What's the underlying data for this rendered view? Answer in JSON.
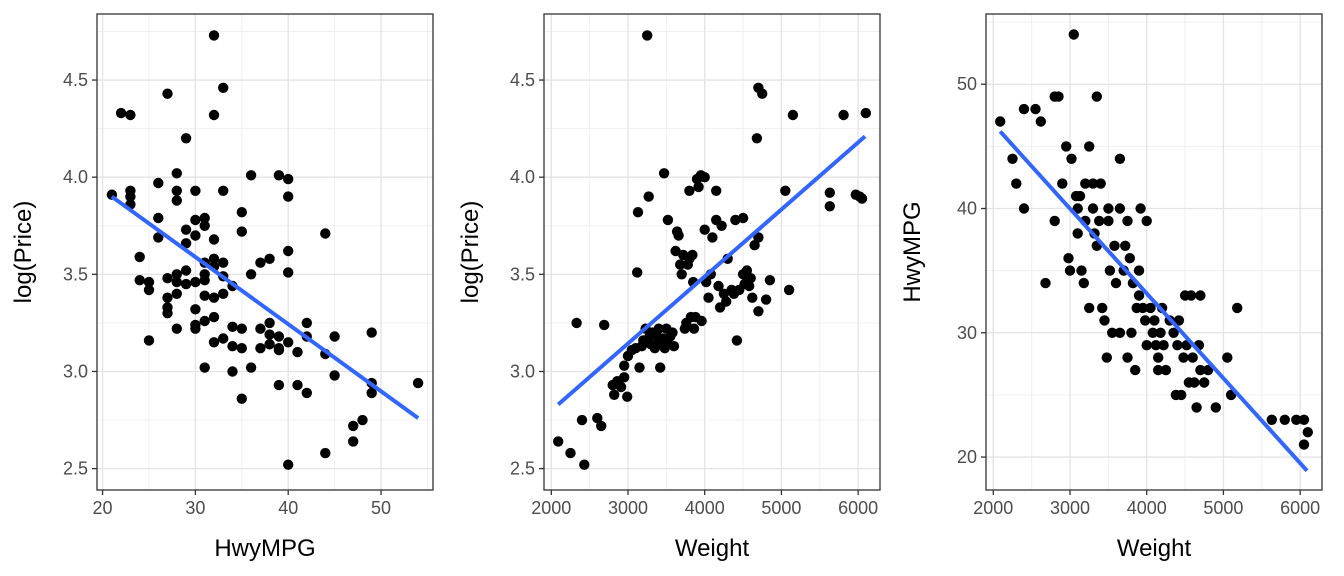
{
  "chart_data": [
    {
      "type": "scatter",
      "title": "",
      "xlabel": "HwyMPG",
      "ylabel": "log(Price)",
      "xlim": [
        19.4,
        55.6
      ],
      "ylim": [
        2.39,
        4.84
      ],
      "xticks": [
        20,
        30,
        40,
        50
      ],
      "yticks": [
        2.5,
        3.0,
        3.5,
        4.0,
        4.5
      ],
      "ytick_labels": [
        "2.5",
        "3.0",
        "3.5",
        "4.0",
        "4.5"
      ],
      "grid": true,
      "trend_line": {
        "x": [
          21,
          54
        ],
        "y": [
          3.9,
          2.76
        ],
        "color": "#3366ff"
      },
      "point_color": "#000000",
      "points": [
        [
          21,
          3.91
        ],
        [
          22,
          4.33
        ],
        [
          23,
          4.32
        ],
        [
          23,
          3.93
        ],
        [
          23,
          3.9
        ],
        [
          23,
          3.86
        ],
        [
          24,
          3.59
        ],
        [
          24,
          3.47
        ],
        [
          25,
          3.46
        ],
        [
          25,
          3.42
        ],
        [
          25,
          3.16
        ],
        [
          26,
          3.97
        ],
        [
          26,
          3.79
        ],
        [
          26,
          3.69
        ],
        [
          27,
          4.43
        ],
        [
          27,
          3.48
        ],
        [
          27,
          3.38
        ],
        [
          27,
          3.33
        ],
        [
          27,
          3.3
        ],
        [
          28,
          4.02
        ],
        [
          28,
          3.93
        ],
        [
          28,
          3.88
        ],
        [
          28,
          3.5
        ],
        [
          28,
          3.46
        ],
        [
          28,
          3.4
        ],
        [
          28,
          3.22
        ],
        [
          29,
          4.2
        ],
        [
          29,
          3.73
        ],
        [
          29,
          3.66
        ],
        [
          29,
          3.52
        ],
        [
          29,
          3.45
        ],
        [
          30,
          3.93
        ],
        [
          30,
          3.78
        ],
        [
          30,
          3.7
        ],
        [
          30,
          3.46
        ],
        [
          30,
          3.32
        ],
        [
          30,
          3.22
        ],
        [
          30,
          3.24
        ],
        [
          31,
          3.79
        ],
        [
          31,
          3.75
        ],
        [
          31,
          3.56
        ],
        [
          31,
          3.5
        ],
        [
          31,
          3.47
        ],
        [
          31,
          3.39
        ],
        [
          31,
          3.26
        ],
        [
          31,
          3.02
        ],
        [
          32,
          4.73
        ],
        [
          32,
          4.32
        ],
        [
          32,
          3.68
        ],
        [
          32,
          3.58
        ],
        [
          32,
          3.54
        ],
        [
          32,
          3.38
        ],
        [
          32,
          3.28
        ],
        [
          32,
          3.15
        ],
        [
          33,
          4.46
        ],
        [
          33,
          3.93
        ],
        [
          33,
          3.56
        ],
        [
          33,
          3.49
        ],
        [
          33,
          3.4
        ],
        [
          33,
          3.17
        ],
        [
          34,
          3.44
        ],
        [
          34,
          3.23
        ],
        [
          34,
          3.13
        ],
        [
          34,
          3.0
        ],
        [
          35,
          3.82
        ],
        [
          35,
          3.72
        ],
        [
          35,
          3.22
        ],
        [
          35,
          3.12
        ],
        [
          35,
          2.86
        ],
        [
          36,
          4.01
        ],
        [
          36,
          3.5
        ],
        [
          36,
          3.02
        ],
        [
          37,
          3.56
        ],
        [
          37,
          3.22
        ],
        [
          37,
          3.12
        ],
        [
          38,
          3.58
        ],
        [
          38,
          3.25
        ],
        [
          38,
          3.19
        ],
        [
          38,
          3.14
        ],
        [
          39,
          4.01
        ],
        [
          39,
          3.18
        ],
        [
          39,
          3.12
        ],
        [
          39,
          3.11
        ],
        [
          39,
          2.93
        ],
        [
          40,
          3.99
        ],
        [
          40,
          3.9
        ],
        [
          40,
          3.62
        ],
        [
          40,
          3.51
        ],
        [
          40,
          3.15
        ],
        [
          40,
          2.52
        ],
        [
          41,
          3.1
        ],
        [
          41,
          2.93
        ],
        [
          42,
          3.25
        ],
        [
          42,
          3.18
        ],
        [
          42,
          2.89
        ],
        [
          44,
          3.71
        ],
        [
          44,
          3.09
        ],
        [
          44,
          2.58
        ],
        [
          45,
          3.18
        ],
        [
          45,
          2.98
        ],
        [
          47,
          2.72
        ],
        [
          47,
          2.64
        ],
        [
          48,
          2.75
        ],
        [
          49,
          3.2
        ],
        [
          49,
          2.94
        ],
        [
          49,
          2.89
        ],
        [
          54,
          2.94
        ]
      ]
    },
    {
      "type": "scatter",
      "title": "",
      "xlabel": "Weight",
      "ylabel": "log(Price)",
      "xlim": [
        1905,
        6285
      ],
      "ylim": [
        2.39,
        4.84
      ],
      "xticks": [
        2000,
        3000,
        4000,
        5000,
        6000
      ],
      "yticks": [
        2.5,
        3.0,
        3.5,
        4.0,
        4.5
      ],
      "ytick_labels": [
        "2.5",
        "3.0",
        "3.5",
        "4.0",
        "4.5"
      ],
      "grid": true,
      "trend_line": {
        "x": [
          2090,
          6090
        ],
        "y": [
          2.83,
          4.21
        ],
        "color": "#3366ff"
      },
      "point_color": "#000000",
      "points": [
        [
          2090,
          2.64
        ],
        [
          2250,
          2.58
        ],
        [
          2330,
          3.25
        ],
        [
          2400,
          2.75
        ],
        [
          2430,
          2.52
        ],
        [
          2600,
          2.76
        ],
        [
          2650,
          2.72
        ],
        [
          2690,
          3.24
        ],
        [
          2800,
          2.93
        ],
        [
          2820,
          2.88
        ],
        [
          2860,
          2.95
        ],
        [
          2910,
          2.92
        ],
        [
          2950,
          3.03
        ],
        [
          2950,
          2.97
        ],
        [
          2990,
          2.87
        ],
        [
          3000,
          3.08
        ],
        [
          3050,
          3.11
        ],
        [
          3100,
          3.12
        ],
        [
          3120,
          3.51
        ],
        [
          3130,
          3.82
        ],
        [
          3150,
          3.02
        ],
        [
          3180,
          3.13
        ],
        [
          3200,
          3.16
        ],
        [
          3230,
          3.22
        ],
        [
          3250,
          4.73
        ],
        [
          3270,
          3.9
        ],
        [
          3280,
          3.18
        ],
        [
          3300,
          3.14
        ],
        [
          3320,
          3.2
        ],
        [
          3350,
          3.12
        ],
        [
          3380,
          3.14
        ],
        [
          3400,
          3.22
        ],
        [
          3400,
          3.17
        ],
        [
          3420,
          3.02
        ],
        [
          3450,
          3.17
        ],
        [
          3470,
          4.02
        ],
        [
          3480,
          3.12
        ],
        [
          3500,
          3.15
        ],
        [
          3500,
          3.22
        ],
        [
          3520,
          3.78
        ],
        [
          3550,
          3.18
        ],
        [
          3580,
          3.2
        ],
        [
          3600,
          3.13
        ],
        [
          3620,
          3.62
        ],
        [
          3640,
          3.72
        ],
        [
          3660,
          3.7
        ],
        [
          3680,
          3.55
        ],
        [
          3700,
          3.5
        ],
        [
          3720,
          3.6
        ],
        [
          3740,
          3.22
        ],
        [
          3760,
          3.25
        ],
        [
          3780,
          3.55
        ],
        [
          3800,
          3.93
        ],
        [
          3800,
          3.58
        ],
        [
          3820,
          3.28
        ],
        [
          3840,
          3.6
        ],
        [
          3850,
          3.46
        ],
        [
          3860,
          3.22
        ],
        [
          3880,
          3.28
        ],
        [
          3900,
          3.99
        ],
        [
          3920,
          3.95
        ],
        [
          3950,
          4.01
        ],
        [
          3960,
          3.26
        ],
        [
          4000,
          4.0
        ],
        [
          4000,
          3.73
        ],
        [
          4020,
          3.46
        ],
        [
          4050,
          3.38
        ],
        [
          4080,
          3.5
        ],
        [
          4100,
          3.69
        ],
        [
          4150,
          3.93
        ],
        [
          4150,
          3.78
        ],
        [
          4180,
          3.44
        ],
        [
          4200,
          3.33
        ],
        [
          4220,
          3.75
        ],
        [
          4250,
          3.4
        ],
        [
          4280,
          3.36
        ],
        [
          4300,
          3.58
        ],
        [
          4350,
          3.42
        ],
        [
          4380,
          3.4
        ],
        [
          4400,
          3.78
        ],
        [
          4420,
          3.16
        ],
        [
          4450,
          3.42
        ],
        [
          4500,
          3.79
        ],
        [
          4500,
          3.5
        ],
        [
          4520,
          3.45
        ],
        [
          4550,
          3.52
        ],
        [
          4580,
          3.44
        ],
        [
          4600,
          3.48
        ],
        [
          4620,
          3.38
        ],
        [
          4650,
          3.65
        ],
        [
          4680,
          4.2
        ],
        [
          4700,
          4.46
        ],
        [
          4700,
          3.69
        ],
        [
          4700,
          3.31
        ],
        [
          4750,
          4.43
        ],
        [
          4800,
          3.37
        ],
        [
          4850,
          3.47
        ],
        [
          5050,
          3.93
        ],
        [
          5100,
          3.42
        ],
        [
          5150,
          4.32
        ],
        [
          5630,
          3.92
        ],
        [
          5630,
          3.85
        ],
        [
          5810,
          4.32
        ],
        [
          5970,
          3.91
        ],
        [
          6020,
          3.9
        ],
        [
          6050,
          3.89
        ],
        [
          6100,
          4.33
        ]
      ]
    },
    {
      "type": "scatter",
      "title": "",
      "xlabel": "Weight",
      "ylabel": "HwyMPG",
      "xlim": [
        1905,
        6285
      ],
      "ylim": [
        17.35,
        55.65
      ],
      "xticks": [
        2000,
        3000,
        4000,
        5000,
        6000
      ],
      "yticks": [
        20,
        30,
        40,
        50
      ],
      "ytick_labels": [
        "20",
        "30",
        "40",
        "50"
      ],
      "grid": true,
      "trend_line": {
        "x": [
          2090,
          6090
        ],
        "y": [
          46.2,
          18.9
        ],
        "color": "#3366ff"
      },
      "point_color": "#000000",
      "points": [
        [
          2090,
          47
        ],
        [
          2250,
          44
        ],
        [
          2300,
          42
        ],
        [
          2400,
          48
        ],
        [
          2400,
          40
        ],
        [
          2550,
          48
        ],
        [
          2620,
          47
        ],
        [
          2680,
          34
        ],
        [
          2800,
          49
        ],
        [
          2800,
          39
        ],
        [
          2850,
          49
        ],
        [
          2900,
          42
        ],
        [
          2950,
          45
        ],
        [
          2980,
          36
        ],
        [
          3000,
          35
        ],
        [
          3020,
          44
        ],
        [
          3050,
          54
        ],
        [
          3080,
          41
        ],
        [
          3100,
          38
        ],
        [
          3100,
          40
        ],
        [
          3130,
          41
        ],
        [
          3150,
          35
        ],
        [
          3180,
          34
        ],
        [
          3200,
          42
        ],
        [
          3200,
          39
        ],
        [
          3250,
          45
        ],
        [
          3250,
          32
        ],
        [
          3300,
          42
        ],
        [
          3300,
          40
        ],
        [
          3320,
          38
        ],
        [
          3350,
          49
        ],
        [
          3350,
          37
        ],
        [
          3380,
          39
        ],
        [
          3400,
          42
        ],
        [
          3420,
          32
        ],
        [
          3450,
          31
        ],
        [
          3480,
          28
        ],
        [
          3500,
          40
        ],
        [
          3500,
          39
        ],
        [
          3520,
          35
        ],
        [
          3550,
          30
        ],
        [
          3580,
          37
        ],
        [
          3600,
          34
        ],
        [
          3650,
          44
        ],
        [
          3650,
          40
        ],
        [
          3650,
          30
        ],
        [
          3700,
          35
        ],
        [
          3720,
          37
        ],
        [
          3750,
          39
        ],
        [
          3750,
          28
        ],
        [
          3780,
          36
        ],
        [
          3800,
          30
        ],
        [
          3820,
          34
        ],
        [
          3850,
          27
        ],
        [
          3870,
          32
        ],
        [
          3900,
          35
        ],
        [
          3900,
          33
        ],
        [
          3920,
          40
        ],
        [
          3950,
          32
        ],
        [
          3980,
          31
        ],
        [
          4000,
          39
        ],
        [
          4000,
          29
        ],
        [
          4050,
          32
        ],
        [
          4080,
          30
        ],
        [
          4100,
          31
        ],
        [
          4120,
          29
        ],
        [
          4150,
          28
        ],
        [
          4150,
          27
        ],
        [
          4180,
          30
        ],
        [
          4200,
          32
        ],
        [
          4220,
          29
        ],
        [
          4250,
          27
        ],
        [
          4300,
          31
        ],
        [
          4350,
          30
        ],
        [
          4380,
          25
        ],
        [
          4400,
          29
        ],
        [
          4420,
          31
        ],
        [
          4450,
          25
        ],
        [
          4480,
          28
        ],
        [
          4500,
          33
        ],
        [
          4520,
          29
        ],
        [
          4550,
          26
        ],
        [
          4580,
          33
        ],
        [
          4600,
          28
        ],
        [
          4620,
          26
        ],
        [
          4650,
          24
        ],
        [
          4680,
          29
        ],
        [
          4700,
          33
        ],
        [
          4700,
          27
        ],
        [
          4750,
          26
        ],
        [
          4800,
          27
        ],
        [
          4900,
          24
        ],
        [
          5050,
          28
        ],
        [
          5100,
          25
        ],
        [
          5180,
          32
        ],
        [
          5630,
          23
        ],
        [
          5800,
          23
        ],
        [
          5950,
          23
        ],
        [
          6050,
          23
        ],
        [
          6050,
          21
        ],
        [
          6100,
          22
        ]
      ]
    }
  ]
}
